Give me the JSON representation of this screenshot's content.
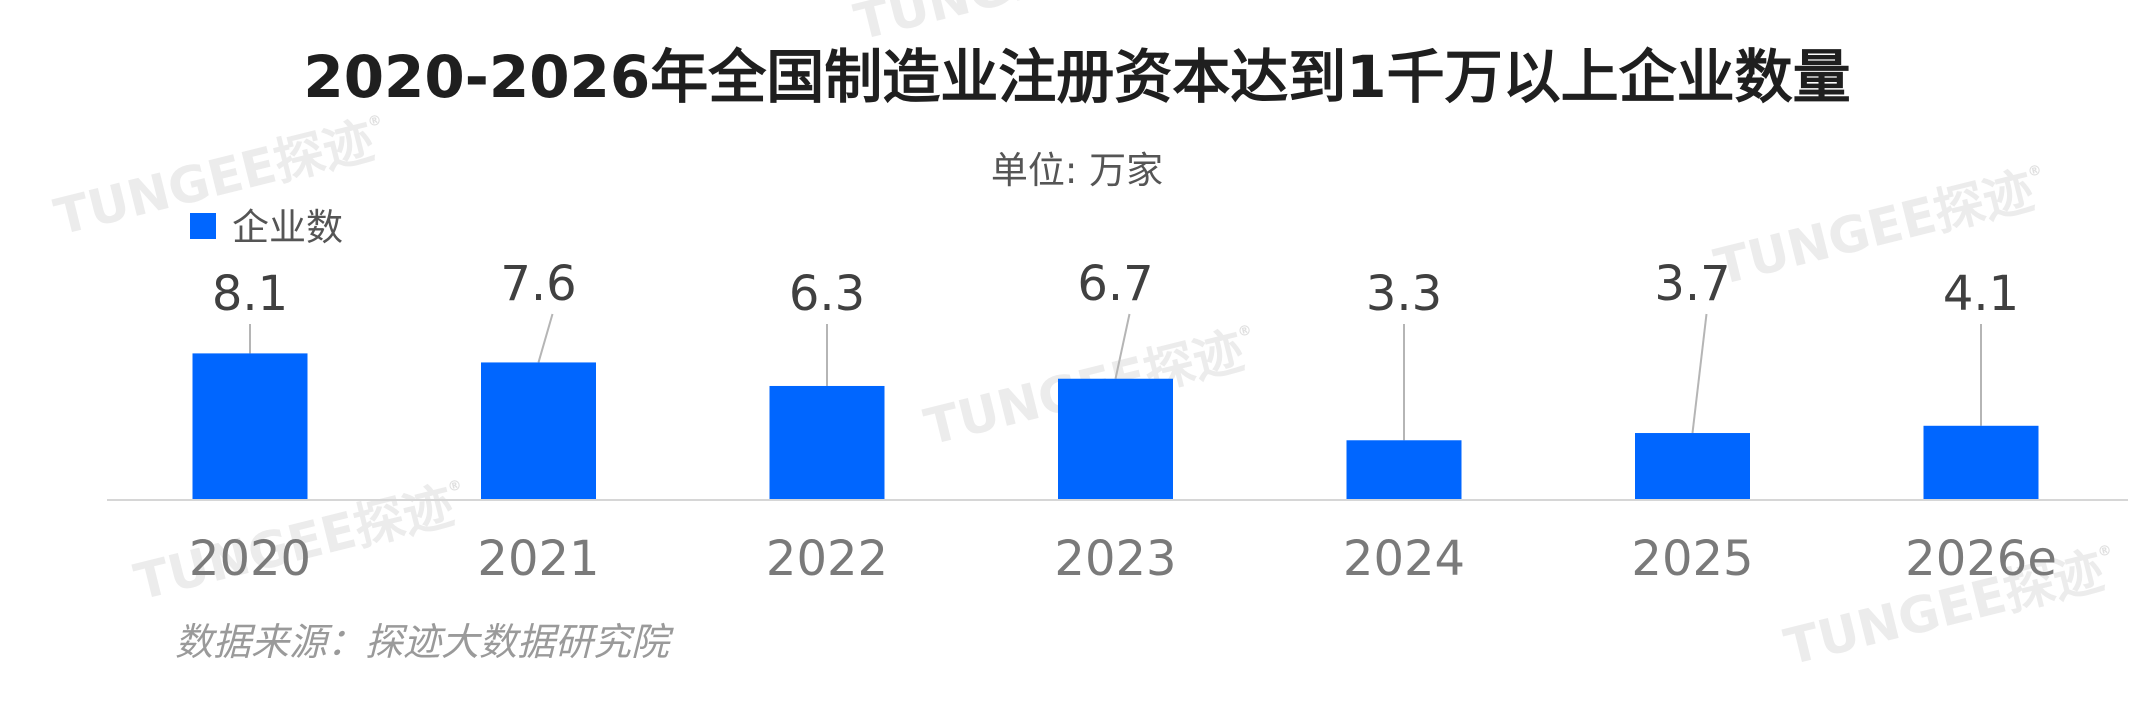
{
  "chart_data": {
    "type": "bar",
    "title": "2020-2026年全国制造业注册资本达到1千万以上企业数量",
    "subtitle": "单位: 万家",
    "categories": [
      "2020",
      "2021",
      "2022",
      "2023",
      "2024",
      "2025",
      "2026e"
    ],
    "series": [
      {
        "name": "企业数",
        "values": [
          8.1,
          7.6,
          6.3,
          6.7,
          3.3,
          3.7,
          4.1
        ],
        "color": "#0066ff"
      }
    ],
    "legend_position": "top-left",
    "grid": false,
    "source": "数据来源：探迹大数据研究院"
  },
  "watermark": {
    "text": "TUNGEE探迹",
    "mark": "®"
  }
}
